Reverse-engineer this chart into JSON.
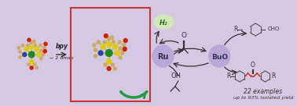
{
  "background_color": "#d4c8e2",
  "fig_width": 3.78,
  "fig_height": 1.36,
  "left_label1": "bpy",
  "left_label2": "− 2 dmso",
  "ru_label": "Ru",
  "buo_label": "BuO",
  "h2_label": "H₂",
  "oh_label": "OH",
  "bottom_text1": "22 examples",
  "bottom_text2": "up to 93% isolated yield",
  "box_color": "#cc3333",
  "ru_circle_color": "#b8a8d8",
  "buo_circle_color": "#b8a8d8",
  "h2_bubble_color": "#d0e8b8",
  "arrow_color": "#333333",
  "green_arrow_color": "#229944",
  "bond_color_red": "#cc3322",
  "mol_bond_color": "#c8a855",
  "atom_C": "#ccaa66",
  "atom_Ru": "#228822",
  "atom_N": "#2244bb",
  "atom_S": "#ddcc00",
  "atom_O": "#cc2200",
  "atom_H": "#cccccc"
}
